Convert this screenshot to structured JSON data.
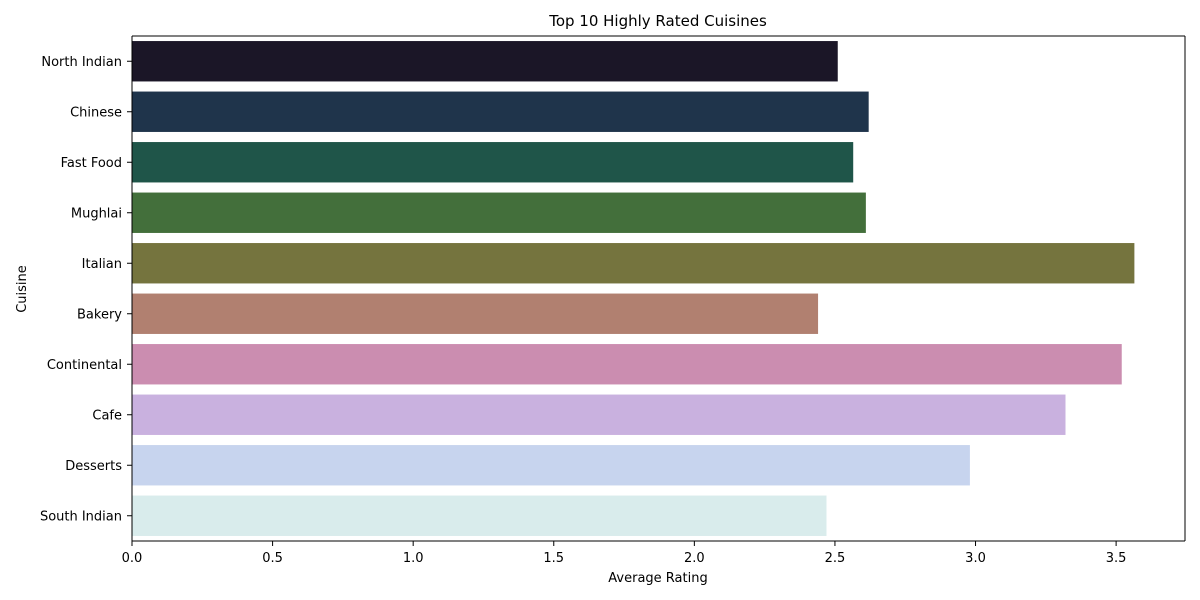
{
  "chart_data": {
    "type": "bar",
    "orientation": "horizontal",
    "title": "Top 10 Highly Rated Cuisines",
    "xlabel": "Average Rating",
    "ylabel": "Cuisine",
    "categories": [
      "North Indian",
      "Chinese",
      "Fast Food",
      "Mughlai",
      "Italian",
      "Bakery",
      "Continental",
      "Cafe",
      "Desserts",
      "South Indian"
    ],
    "values": [
      2.51,
      2.62,
      2.565,
      2.61,
      3.565,
      2.44,
      3.52,
      3.32,
      2.98,
      2.47
    ],
    "colors": [
      "#1b1627",
      "#1f344b",
      "#1f5549",
      "#436f3b",
      "#75743e",
      "#b18070",
      "#cb8db0",
      "#c9b1df",
      "#c7d4ee",
      "#d9ecec"
    ],
    "xlim": [
      0,
      3.745
    ],
    "xticks": [
      "0.0",
      "0.5",
      "1.0",
      "1.5",
      "2.0",
      "2.5",
      "3.0",
      "3.5"
    ],
    "grid": false,
    "legend": "none"
  }
}
